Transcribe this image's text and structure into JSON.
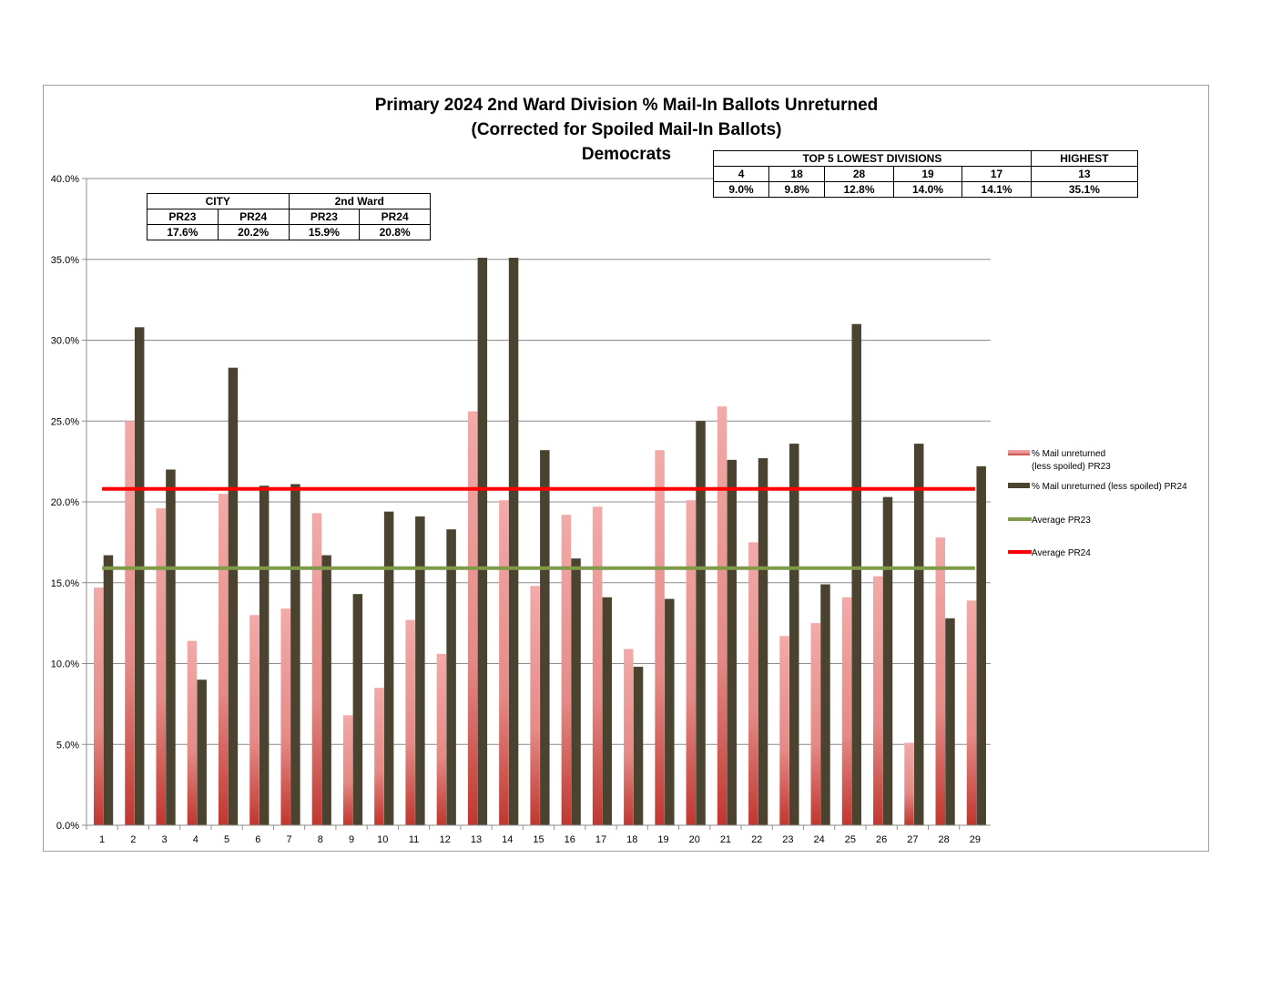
{
  "chart_data": {
    "type": "bar",
    "title": [
      "Primary 2024 2nd Ward Division % Mail-In Ballots Unreturned",
      "(Corrected for Spoiled Mail-In Ballots)",
      "Democrats"
    ],
    "xlabel": "",
    "ylabel": "",
    "ylim": [
      0,
      40
    ],
    "yticks": [
      "0.0%",
      "5.0%",
      "10.0%",
      "15.0%",
      "20.0%",
      "25.0%",
      "30.0%",
      "35.0%",
      "40.0%"
    ],
    "grid": true,
    "legend_position": "right",
    "categories": [
      "1",
      "2",
      "3",
      "4",
      "5",
      "6",
      "7",
      "8",
      "9",
      "10",
      "11",
      "12",
      "13",
      "14",
      "15",
      "16",
      "17",
      "18",
      "19",
      "20",
      "21",
      "22",
      "23",
      "24",
      "25",
      "26",
      "27",
      "28",
      "29"
    ],
    "series": [
      {
        "name": "% Mail unreturned (less spoiled) PR23",
        "legend_lines": [
          "% Mail unreturned",
          "(less spoiled) PR23"
        ],
        "color": "#e8908c",
        "values": [
          14.7,
          25.0,
          19.6,
          11.4,
          20.5,
          13.0,
          13.4,
          19.3,
          6.8,
          8.5,
          12.7,
          10.6,
          25.6,
          20.1,
          14.8,
          19.2,
          19.7,
          10.9,
          23.2,
          20.1,
          25.9,
          17.5,
          11.7,
          12.5,
          14.1,
          15.4,
          5.1,
          17.8,
          13.9
        ]
      },
      {
        "name": "% Mail unreturned (less spoiled) PR24",
        "color": "#4a4330",
        "values": [
          16.7,
          30.8,
          22.0,
          9.0,
          28.3,
          21.0,
          21.1,
          16.7,
          14.3,
          19.4,
          19.1,
          18.3,
          35.1,
          35.1,
          23.2,
          16.5,
          14.1,
          9.8,
          14.0,
          25.0,
          22.6,
          22.7,
          23.6,
          14.9,
          31.0,
          20.3,
          23.6,
          12.8,
          22.2
        ]
      }
    ],
    "reference_lines": [
      {
        "name": "Average PR23",
        "value": 15.9,
        "color": "#7f9a48"
      },
      {
        "name": "Average PR24",
        "value": 20.8,
        "color": "#ff0000"
      }
    ]
  },
  "city_table": {
    "headers": [
      "CITY",
      "2nd Ward"
    ],
    "subheaders": [
      "PR23",
      "PR24",
      "PR23",
      "PR24"
    ],
    "values": [
      "17.6%",
      "20.2%",
      "15.9%",
      "20.8%"
    ]
  },
  "lowest_table": {
    "header_lowest": "TOP 5 LOWEST DIVISIONS",
    "header_highest": "HIGHEST",
    "divisions": [
      "4",
      "18",
      "28",
      "19",
      "17",
      "13"
    ],
    "values": [
      "9.0%",
      "9.8%",
      "12.8%",
      "14.0%",
      "14.1%",
      "35.1%"
    ]
  }
}
